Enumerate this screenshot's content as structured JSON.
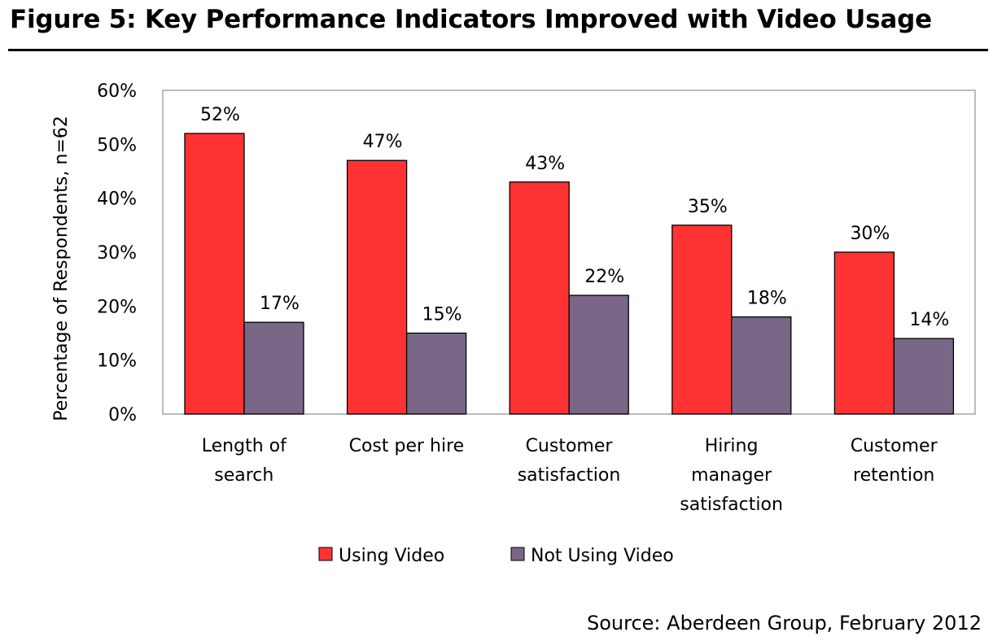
{
  "figure_title": "Figure 5: Key Performance Indicators Improved with Video Usage",
  "source": "Source: Aberdeen Group, February 2012",
  "colors": {
    "using_video": "#ff3333",
    "not_using_video": "#7a6787",
    "frame": "#a6a6a6"
  },
  "chart_data": {
    "type": "bar",
    "title": "",
    "xlabel": "",
    "ylabel": "Percentage of Respondents, n=62",
    "ylim": [
      0,
      60
    ],
    "yticks": [
      "0%",
      "10%",
      "20%",
      "30%",
      "40%",
      "50%",
      "60%"
    ],
    "grid": false,
    "legend_position": "bottom",
    "categories": [
      [
        "Length of",
        "search"
      ],
      [
        "Cost per hire"
      ],
      [
        "Customer",
        "satisfaction"
      ],
      [
        "Hiring",
        "manager",
        "satisfaction"
      ],
      [
        "Customer",
        "retention"
      ]
    ],
    "series": [
      {
        "name": "Using Video",
        "values": [
          52,
          47,
          43,
          35,
          30
        ],
        "labels": [
          "52%",
          "47%",
          "43%",
          "35%",
          "30%"
        ]
      },
      {
        "name": "Not Using Video",
        "values": [
          17,
          15,
          22,
          18,
          14
        ],
        "labels": [
          "17%",
          "15%",
          "22%",
          "18%",
          "14%"
        ]
      }
    ]
  }
}
